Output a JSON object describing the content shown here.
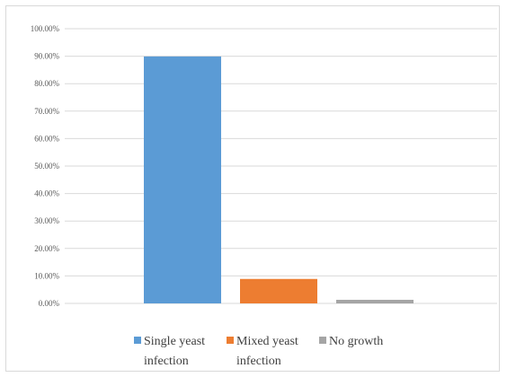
{
  "chart_data": {
    "type": "bar",
    "categories": [
      "Single yeast infection",
      "Mixed yeast infection",
      "No growth"
    ],
    "values": [
      89.9,
      8.9,
      1.3
    ],
    "value_unit": "percent",
    "ylim": [
      0,
      100
    ],
    "yticks": [
      "0.00%",
      "10.00%",
      "20.00%",
      "30.00%",
      "40.00%",
      "50.00%",
      "60.00%",
      "70.00%",
      "80.00%",
      "90.00%",
      "100.00%"
    ],
    "colors": [
      "#5b9bd5",
      "#ed7d31",
      "#a5a5a5"
    ],
    "grid": true,
    "legend_position": "bottom",
    "legend": [
      {
        "line1": "Single yeast",
        "line2": "infection"
      },
      {
        "line1": "Mixed yeast",
        "line2": "infection"
      },
      {
        "line1": "No growth",
        "line2": ""
      }
    ],
    "title": "",
    "xlabel": "",
    "ylabel": ""
  }
}
